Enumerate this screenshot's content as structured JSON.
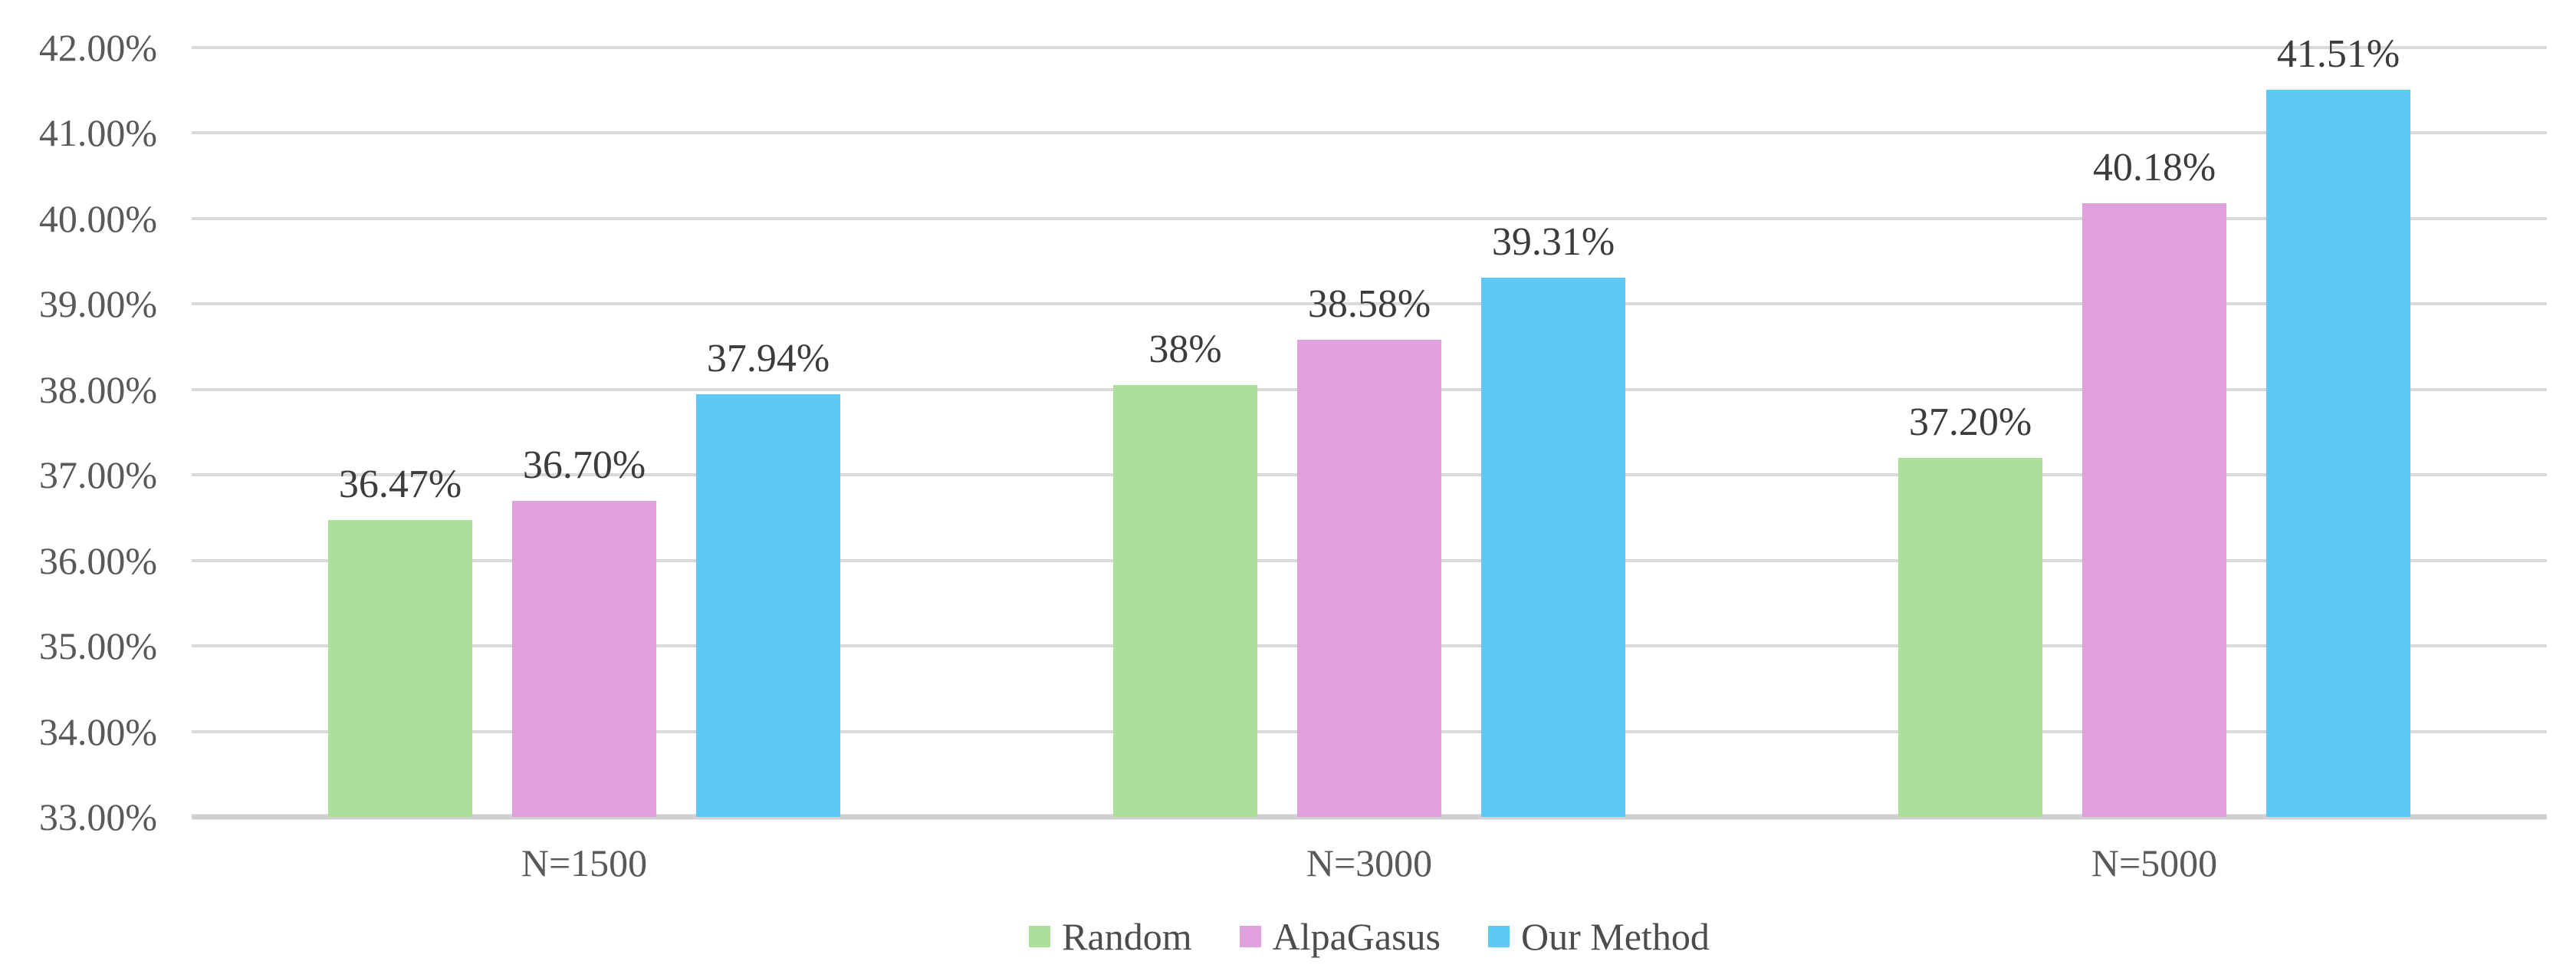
{
  "chart_data": {
    "type": "bar",
    "title": "",
    "categories": [
      "N=1500",
      "N=3000",
      "N=5000"
    ],
    "series": [
      {
        "name": "Random",
        "color": "#abe09c",
        "values": [
          36.47,
          38.05,
          37.2
        ],
        "data_labels": [
          "36.47%",
          "38%",
          "37.20%"
        ]
      },
      {
        "name": "AlpaGasus",
        "color": "#e1a0de",
        "values": [
          36.7,
          38.58,
          40.18
        ],
        "data_labels": [
          "36.70%",
          "38.58%",
          "40.18%"
        ]
      },
      {
        "name": "Our Method",
        "color": "#5ec9f2",
        "values": [
          37.94,
          39.31,
          41.51
        ],
        "data_labels": [
          "37.94%",
          "39.31%",
          "41.51%"
        ]
      }
    ],
    "y_axis": {
      "min": 33,
      "max": 42,
      "step": 1,
      "tick_labels": [
        "33.00%",
        "34.00%",
        "35.00%",
        "36.00%",
        "37.00%",
        "38.00%",
        "39.00%",
        "40.00%",
        "41.00%",
        "42.00%"
      ]
    },
    "xlabel": "",
    "ylabel": "",
    "grid": true,
    "legend_position": "bottom",
    "styles": {
      "gridline_color": "#d9d9d9",
      "baseline_color": "#d0d0d0",
      "tick_text_color": "#595959",
      "data_label_color": "#3c3c3c",
      "legend_text_color": "#4c4c4c"
    }
  }
}
